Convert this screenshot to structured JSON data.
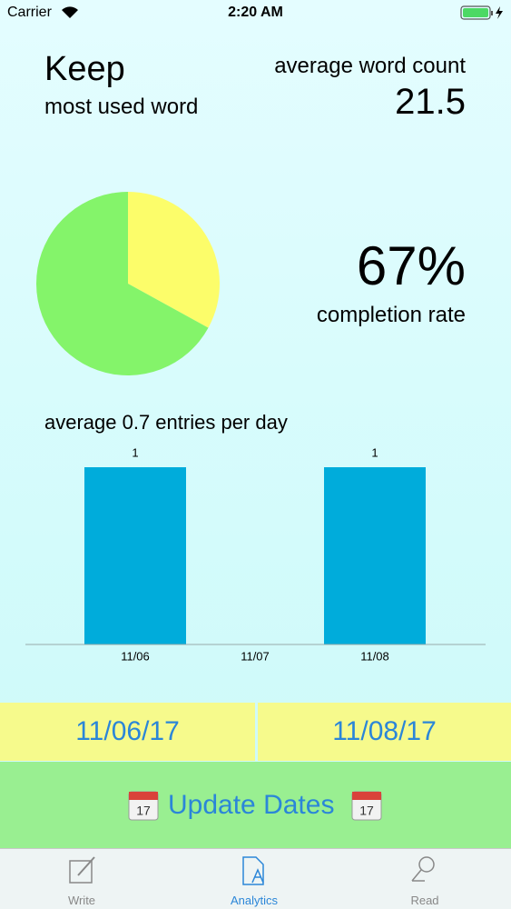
{
  "status_bar": {
    "carrier": "Carrier",
    "time": "2:20 AM"
  },
  "summary": {
    "most_used_word": "Keep",
    "most_used_word_label": "most used word",
    "average_word_count_label": "average word count",
    "average_word_count": 21.5,
    "completion_rate": "67%",
    "completion_rate_label": "completion rate"
  },
  "chart_data": [
    {
      "type": "pie",
      "values": [
        33,
        67
      ],
      "colors": [
        "#fcfd6a",
        "#84f46a"
      ]
    },
    {
      "type": "bar",
      "title": "average 0.7 entries per day",
      "categories": [
        "11/06",
        "11/07",
        "11/08"
      ],
      "values": [
        1,
        0,
        1
      ],
      "color": "#00acdb",
      "ylim": [
        0,
        1
      ]
    }
  ],
  "date_range": {
    "start": "11/06/17",
    "end": "11/08/17",
    "button": "Update Dates"
  },
  "tab_bar": {
    "tabs": [
      "Write",
      "Analytics",
      "Read"
    ],
    "selected": 1
  }
}
